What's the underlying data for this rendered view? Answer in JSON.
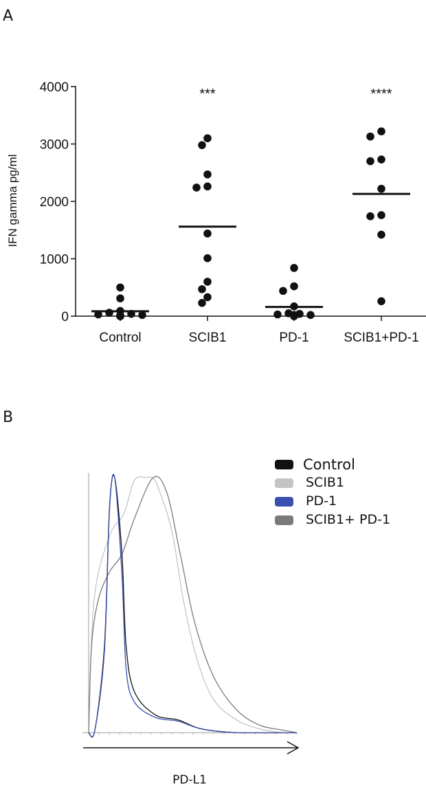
{
  "chart_data": [
    {
      "panel": "A",
      "type": "scatter",
      "title": "",
      "xlabel": "",
      "ylabel": "IFN gamma pg/ml",
      "ylim": [
        0,
        4000
      ],
      "yticks": [
        "0",
        "1000",
        "2000",
        "3000",
        "4000"
      ],
      "categories": [
        "Control",
        "SCIB1",
        "PD-1",
        "SCIB1+PD-1"
      ],
      "significance": [
        "",
        "***",
        "",
        "****"
      ],
      "series": [
        {
          "name": "Control",
          "values": [
            500,
            310,
            90,
            60,
            40,
            30,
            20,
            10,
            10,
            5,
            0,
            0
          ],
          "mean": 85
        },
        {
          "name": "SCIB1",
          "values": [
            3100,
            2980,
            2470,
            2260,
            2240,
            1440,
            1010,
            600,
            470,
            330,
            230
          ],
          "mean": 1560
        },
        {
          "name": "PD-1",
          "values": [
            840,
            520,
            440,
            170,
            50,
            40,
            30,
            20,
            20,
            10,
            10,
            0,
            0
          ],
          "mean": 160
        },
        {
          "name": "SCIB1+PD-1",
          "values": [
            3220,
            3130,
            2730,
            2700,
            2220,
            1760,
            1740,
            1420,
            260
          ],
          "mean": 2130
        }
      ],
      "grid": false
    },
    {
      "panel": "B",
      "type": "line",
      "title": "",
      "xlabel": "PD-L1",
      "ylabel": "",
      "xlim": [
        0,
        100
      ],
      "ylim": [
        0,
        100
      ],
      "legend_position": "top-right",
      "series": [
        {
          "name": "Control",
          "color": "#111111",
          "x": [
            0,
            3,
            7.6,
            10,
            12.5,
            16,
            18,
            22,
            32,
            43,
            54,
            71,
            100
          ],
          "y": [
            0,
            1,
            34,
            88,
            100,
            70,
            34,
            16,
            7,
            5,
            1.5,
            0,
            0
          ]
        },
        {
          "name": "SCIB1",
          "color": "#c4c4c4",
          "x": [
            0,
            2.6,
            10,
            17,
            22,
            28,
            30,
            33,
            40,
            45.5,
            52,
            60,
            71,
            82,
            93,
            100
          ],
          "y": [
            0,
            52,
            77,
            86,
            99,
            100,
            100,
            97,
            79,
            52,
            29,
            13,
            5,
            1.5,
            0,
            0
          ]
        },
        {
          "name": "PD-1",
          "color": "#3a4fb0",
          "x": [
            0,
            3,
            7.6,
            10,
            12.5,
            16,
            18,
            22,
            32,
            43,
            54,
            71,
            100
          ],
          "y": [
            0,
            1,
            32,
            87,
            100,
            62,
            25,
            12,
            6,
            4.5,
            1.5,
            0,
            0
          ]
        },
        {
          "name": "SCIB1+ PD-1",
          "color": "#7a7a7a",
          "x": [
            0,
            1.4,
            4.6,
            10,
            16,
            22,
            31,
            37.6,
            44,
            51,
            60,
            71,
            82,
            93,
            100
          ],
          "y": [
            0,
            34,
            52,
            63,
            70,
            84,
            100,
            94,
            70,
            43,
            22,
            9,
            3,
            1,
            0
          ]
        }
      ],
      "grid": false
    }
  ],
  "panel_labels": [
    "A",
    "B"
  ]
}
